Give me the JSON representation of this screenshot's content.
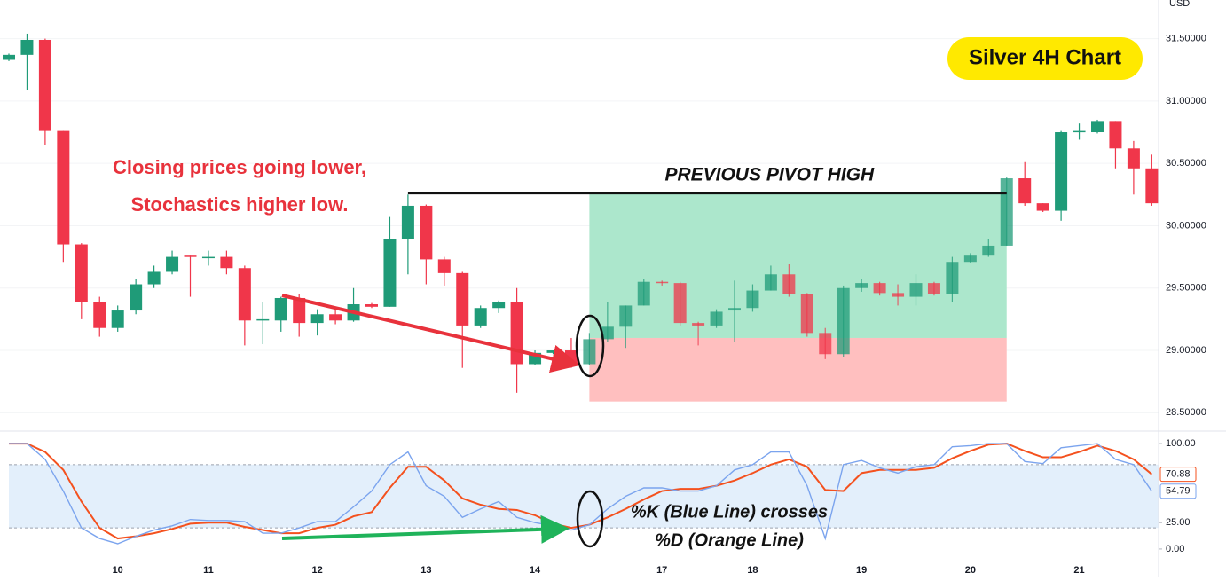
{
  "chart_data": [
    {
      "type": "candlestick",
      "title": "Silver 4H Chart",
      "unit": "USD",
      "up_color": "#1f9b78",
      "down_color": "#f0364a",
      "ylim": [
        28.36,
        31.81
      ],
      "yticks": [
        {
          "value": 28.5,
          "label": "28.50000"
        },
        {
          "value": 29,
          "label": "29.00000"
        },
        {
          "value": 29.5,
          "label": "29.50000"
        },
        {
          "value": 30,
          "label": "30.00000"
        },
        {
          "value": 30.5,
          "label": "30.50000"
        },
        {
          "value": 31,
          "label": "31.00000"
        },
        {
          "value": 31.5,
          "label": "31.50000"
        }
      ],
      "categories": [
        null,
        null,
        null,
        null,
        null,
        null,
        "10",
        null,
        null,
        null,
        null,
        "11",
        null,
        null,
        null,
        null,
        null,
        "12",
        null,
        null,
        null,
        null,
        null,
        "13",
        null,
        null,
        null,
        null,
        null,
        "14",
        null,
        null,
        null,
        null,
        null,
        null,
        "17",
        null,
        null,
        null,
        null,
        "18",
        null,
        null,
        null,
        null,
        null,
        "19",
        null,
        null,
        null,
        null,
        null,
        "20",
        null,
        null,
        null,
        null,
        null,
        "21",
        null,
        null,
        null,
        null
      ],
      "open": [
        31.33,
        31.37,
        31.49,
        30.76,
        29.85,
        29.39,
        29.18,
        29.32,
        29.53,
        29.63,
        29.76,
        29.75,
        29.75,
        29.66,
        29.24,
        29.24,
        29.42,
        29.22,
        29.29,
        29.24,
        29.37,
        29.35,
        29.89,
        30.16,
        29.73,
        29.62,
        29.2,
        29.34,
        29.39,
        28.89,
        28.98,
        29.0,
        28.89,
        29.09,
        29.19,
        29.36,
        29.55,
        29.54,
        29.22,
        29.2,
        29.32,
        29.34,
        29.48,
        29.61,
        29.45,
        29.14,
        28.97,
        29.5,
        29.54,
        29.46,
        29.43,
        29.54,
        29.45,
        29.71,
        29.76,
        29.84,
        30.38,
        30.18,
        30.12,
        30.75,
        30.75,
        30.84,
        30.62,
        30.46
      ],
      "high": [
        31.38,
        31.54,
        31.5,
        30.76,
        29.86,
        29.43,
        29.36,
        29.57,
        29.68,
        29.8,
        29.76,
        29.8,
        29.8,
        29.68,
        29.39,
        29.43,
        29.45,
        29.33,
        29.33,
        29.5,
        29.38,
        30.07,
        30.25,
        30.17,
        29.75,
        29.63,
        29.36,
        29.4,
        29.5,
        29.0,
        29.0,
        29.1,
        29.14,
        29.39,
        29.36,
        29.57,
        29.56,
        29.55,
        29.23,
        29.33,
        29.56,
        29.53,
        29.68,
        29.69,
        29.46,
        29.18,
        29.52,
        29.57,
        29.55,
        29.53,
        29.61,
        29.55,
        29.75,
        29.78,
        29.89,
        30.39,
        30.51,
        30.18,
        30.76,
        30.82,
        30.85,
        30.84,
        30.68,
        30.57
      ],
      "low": [
        31.32,
        31.09,
        30.65,
        29.71,
        29.25,
        29.11,
        29.15,
        29.29,
        29.5,
        29.61,
        29.43,
        29.68,
        29.61,
        29.04,
        29.05,
        29.15,
        29.11,
        29.12,
        29.21,
        29.23,
        29.34,
        29.35,
        29.61,
        29.53,
        29.52,
        28.86,
        29.18,
        29.3,
        28.66,
        28.88,
        28.97,
        28.86,
        28.88,
        29.07,
        29.02,
        29.36,
        29.52,
        29.2,
        29.04,
        29.18,
        29.07,
        29.31,
        29.48,
        29.43,
        29.11,
        28.93,
        28.95,
        29.47,
        29.44,
        29.36,
        29.36,
        29.44,
        29.39,
        29.7,
        29.75,
        29.84,
        30.16,
        30.11,
        30.04,
        30.69,
        30.74,
        30.46,
        30.25,
        30.16
      ],
      "close": [
        31.37,
        31.49,
        30.76,
        29.85,
        29.39,
        29.18,
        29.32,
        29.53,
        29.63,
        29.75,
        29.75,
        29.75,
        29.66,
        29.24,
        29.25,
        29.42,
        29.22,
        29.29,
        29.24,
        29.37,
        29.35,
        29.89,
        30.16,
        29.73,
        29.62,
        29.2,
        29.34,
        29.39,
        28.89,
        28.98,
        29.0,
        28.89,
        29.09,
        29.19,
        29.36,
        29.55,
        29.54,
        29.22,
        29.2,
        29.31,
        29.34,
        29.48,
        29.61,
        29.45,
        29.14,
        28.97,
        29.5,
        29.54,
        29.46,
        29.43,
        29.54,
        29.45,
        29.71,
        29.76,
        29.84,
        30.38,
        30.18,
        30.12,
        30.75,
        30.76,
        30.84,
        30.62,
        30.46,
        30.18
      ],
      "zones": [
        {
          "top": 30.26,
          "bottom": 29.1,
          "start": 32,
          "end": 55,
          "color": "#a8e6c9"
        },
        {
          "top": 29.1,
          "bottom": 28.59,
          "start": 32,
          "end": 55,
          "color": "#ffbcbc"
        }
      ],
      "pivot_line": {
        "label": "PREVIOUS PIVOT HIGH",
        "value": 30.26,
        "start": 22,
        "end": 55
      },
      "annotations": [
        "Closing prices going lower,",
        "Stochastics higher low."
      ]
    },
    {
      "type": "line",
      "ylim": [
        -11,
        111
      ],
      "band": [
        20,
        80
      ],
      "yticks": [
        {
          "value": 0,
          "label": "0.00"
        },
        {
          "value": 25,
          "label": "25.00"
        },
        {
          "value": 100,
          "label": "100.00"
        }
      ],
      "series": [
        {
          "name": "%K",
          "color": "#7ba4ee",
          "values": [
            100,
            100,
            85,
            55,
            20,
            10,
            5,
            12,
            18,
            22,
            28,
            27,
            27,
            26,
            15,
            15,
            20,
            26,
            26,
            40,
            55,
            80,
            92,
            60,
            50,
            30,
            38,
            45,
            30,
            25,
            22,
            18,
            23,
            38,
            50,
            58,
            58,
            55,
            55,
            60,
            75,
            80,
            92,
            92,
            60,
            10,
            80,
            84,
            77,
            72,
            78,
            80,
            97,
            98,
            100,
            100,
            83,
            81,
            96,
            98,
            100,
            85,
            80,
            54.79
          ]
        },
        {
          "name": "%D",
          "color": "#f4511e",
          "values": [
            100,
            100,
            92,
            75,
            45,
            20,
            10,
            12,
            15,
            19,
            24,
            25,
            25,
            21,
            18,
            15,
            15,
            20,
            23,
            31,
            35,
            58,
            78,
            78,
            65,
            48,
            42,
            38,
            37,
            32,
            24,
            20,
            23,
            30,
            38,
            47,
            55,
            57,
            57,
            60,
            65,
            72,
            80,
            85,
            78,
            56,
            55,
            72,
            75,
            75,
            75,
            77,
            86,
            93,
            99,
            100,
            93,
            87,
            87,
            92,
            98,
            93,
            85,
            70.88
          ]
        }
      ],
      "annotations": [
        "%K (Blue Line) crosses",
        "%D (Orange Line)"
      ]
    }
  ]
}
